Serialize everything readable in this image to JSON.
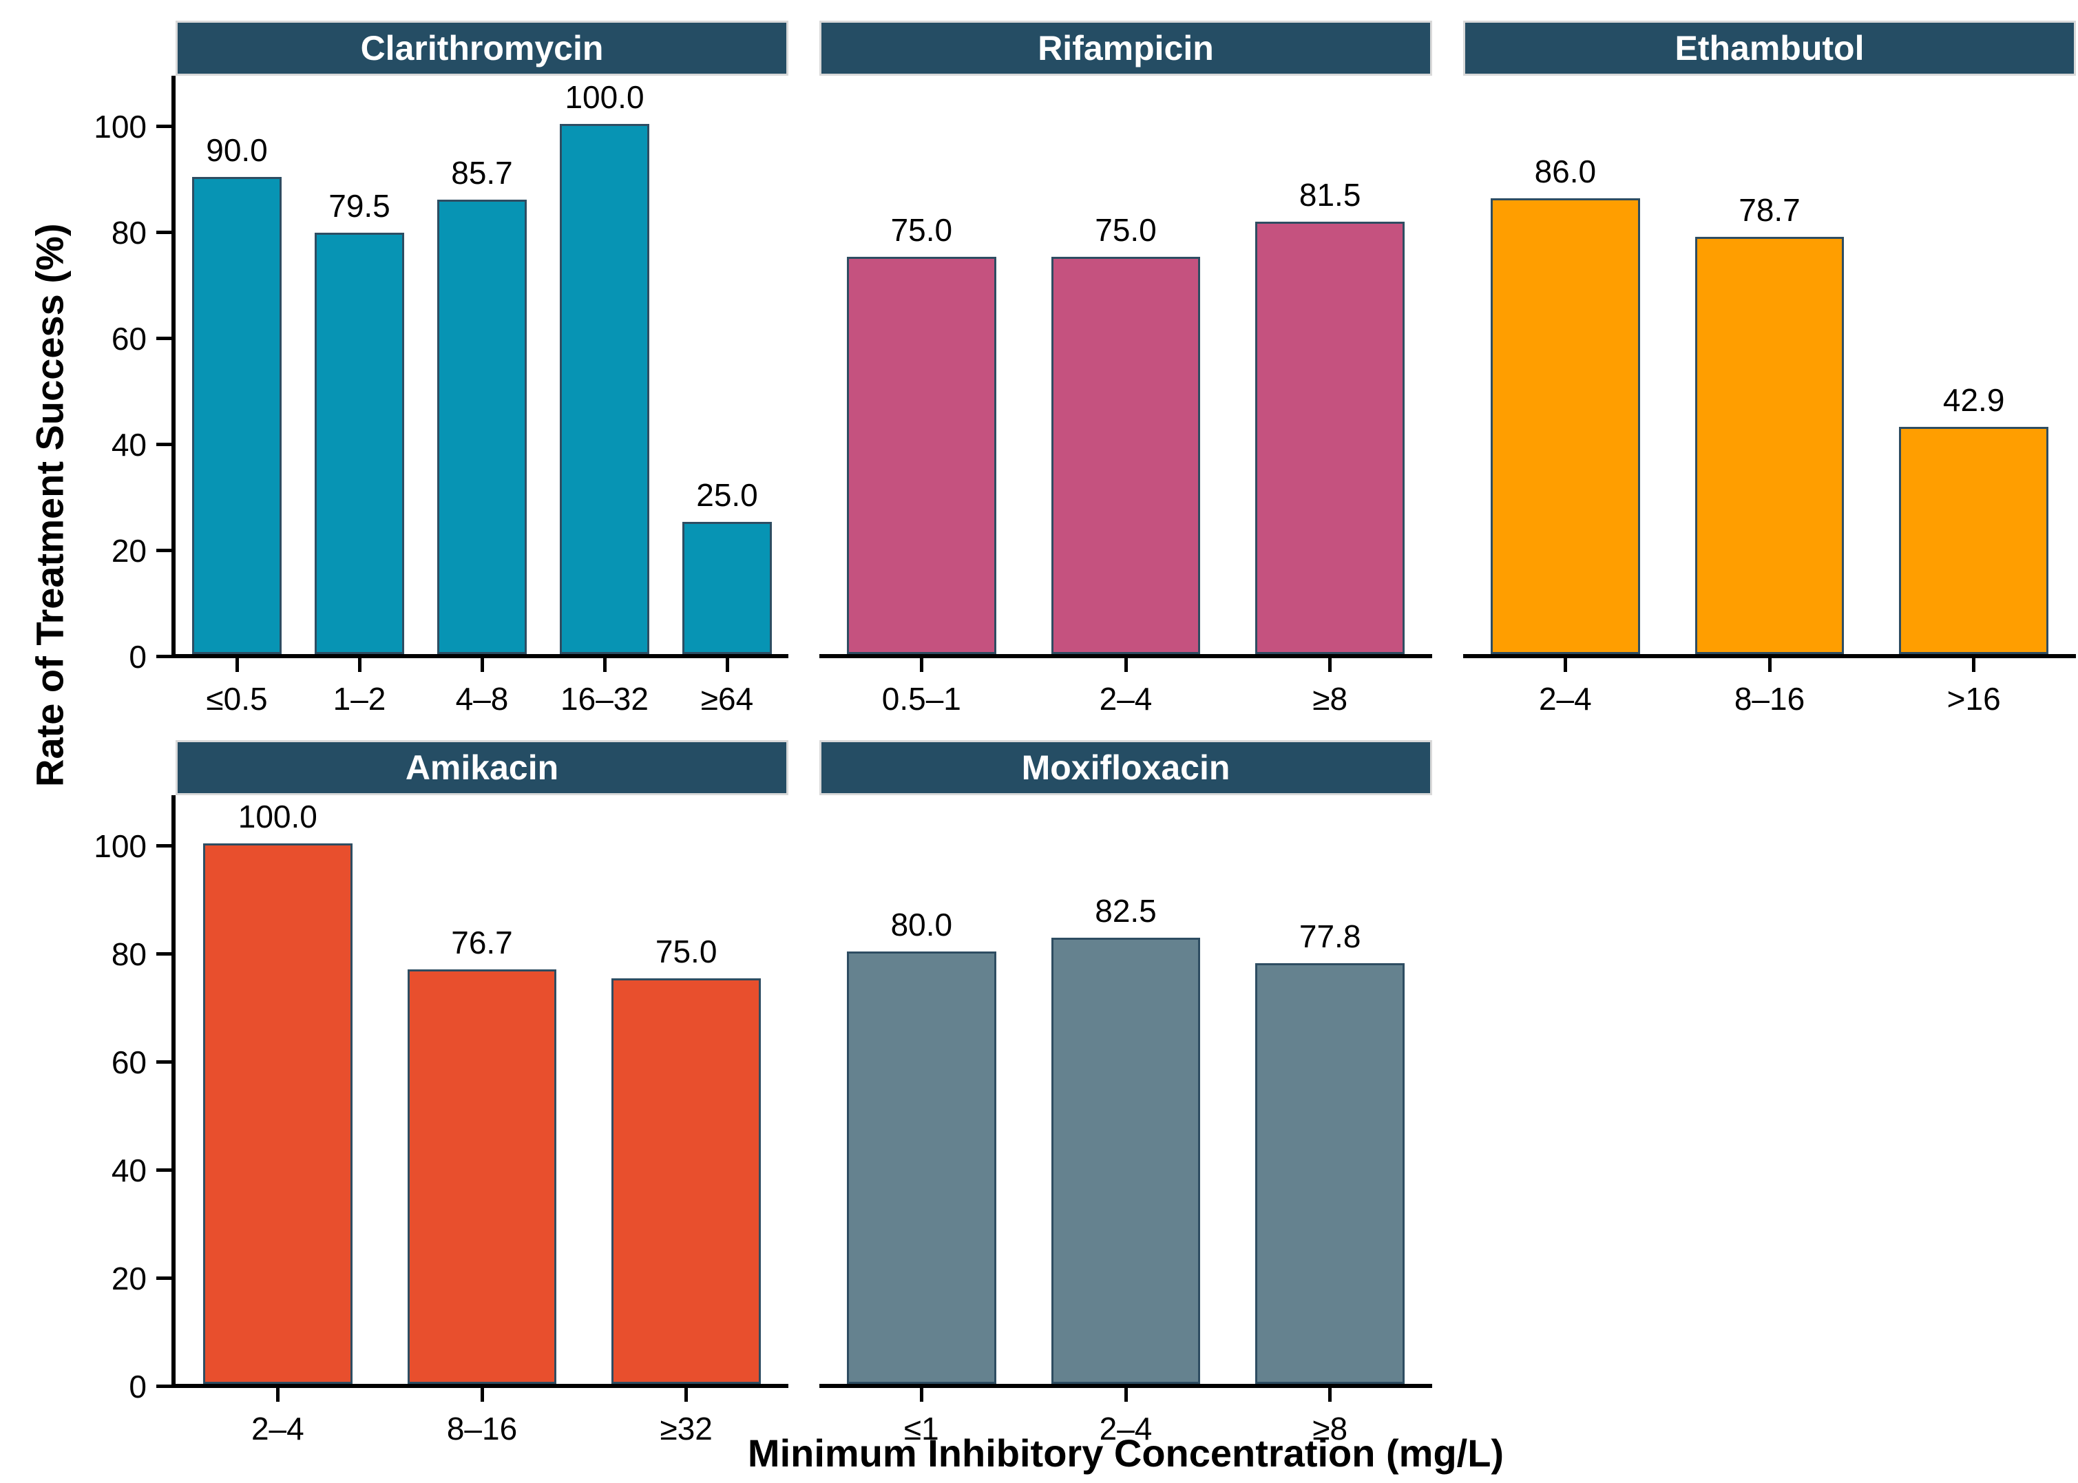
{
  "chart_data": {
    "type": "bar",
    "title": "",
    "ylabel": "Rate of Treatment Success (%)",
    "xlabel": "Minimum Inhibitory Concentration (mg/L)",
    "ylim": [
      0,
      110
    ],
    "yticks": [
      0,
      20,
      40,
      60,
      80,
      100
    ],
    "grid": "off",
    "legend": "none",
    "value_label_decimals": 1,
    "facets": [
      {
        "title": "Clarithromycin",
        "row": 0,
        "col": 0,
        "bar_color": "#0794B4",
        "categories": [
          "≤0.5",
          "1–2",
          "4–8",
          "16–32",
          "≥64"
        ],
        "values": [
          90.0,
          79.5,
          85.7,
          100.0,
          25.0
        ]
      },
      {
        "title": "Rifampicin",
        "row": 0,
        "col": 1,
        "bar_color": "#C5527F",
        "categories": [
          "0.5–1",
          "2–4",
          "≥8"
        ],
        "values": [
          75.0,
          75.0,
          81.5
        ]
      },
      {
        "title": "Ethambutol",
        "row": 0,
        "col": 2,
        "bar_color": "#FF9E00",
        "categories": [
          "2–4",
          "8–16",
          ">16"
        ],
        "values": [
          86.0,
          78.7,
          42.9
        ]
      },
      {
        "title": "Amikacin",
        "row": 1,
        "col": 0,
        "bar_color": "#E84F2D",
        "categories": [
          "2–4",
          "8–16",
          "≥32"
        ],
        "values": [
          100.0,
          76.7,
          75.0
        ]
      },
      {
        "title": "Moxifloxacin",
        "row": 1,
        "col": 1,
        "bar_color": "#65828F",
        "categories": [
          "≤1",
          "2–4",
          "≥8"
        ],
        "values": [
          80.0,
          82.5,
          77.8
        ]
      }
    ],
    "colors": {
      "header_bg": "#254D64",
      "header_text": "#FFFFFF",
      "header_border": "#D9D9D9",
      "bar_outline": "#2E4D62",
      "axis": "#000000",
      "background": "#FFFFFF"
    }
  }
}
